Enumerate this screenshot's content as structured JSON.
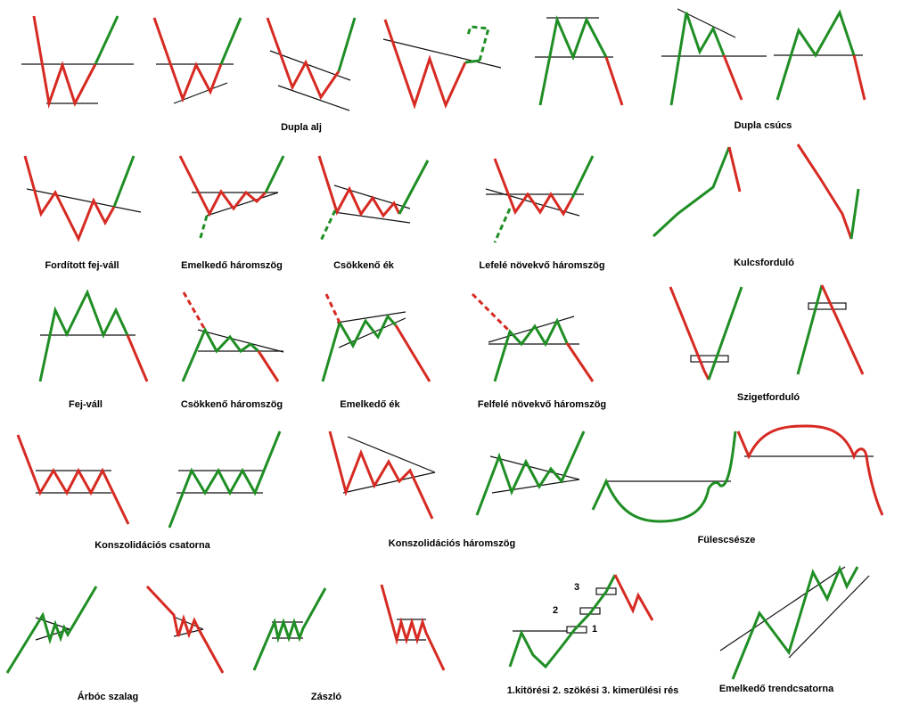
{
  "colors": {
    "bearish": "#d62a22",
    "bullish": "#1f8e24",
    "line": "#111111",
    "background": "#ffffff"
  },
  "labels": {
    "dupla_alj": "Dupla  alj",
    "dupla_csucs": "Dupla csúcs",
    "forditott_fej_vall": "Fordított fej-váll",
    "emelkedo_haromszog": "Emelkedő háromszög",
    "csokkeno_ek": "Csökkenő ék",
    "lefele_novekvo_haromszog": "Lefelé növekvő háromszög",
    "kulcsfordulo": "Kulcsforduló",
    "fej_vall": "Fej-váll",
    "csokkeno_haromszog": "Csökkenő háromszög",
    "emelkedo_ek": "Emelkedő ék",
    "felfele_novekvo_haromszog": "Felfelé növekvő háromszög",
    "szigetfordulo": "Szigetforduló",
    "konszolidacios_csatorna": "Konszolidációs csatorna",
    "konszolidacios_haromszog": "Konszolidációs háromszög",
    "fulescsesze": "Fülescsésze",
    "arboc_szalag": "Árbóc szalag",
    "zaszlo": "Zászló",
    "resek": "1.kitörési  2. szökési  3. kimerülési rés",
    "emelkedo_trendcsatorna": "Emelkedő trendcsatorna"
  },
  "gap_numbers": [
    "1",
    "2",
    "3"
  ]
}
